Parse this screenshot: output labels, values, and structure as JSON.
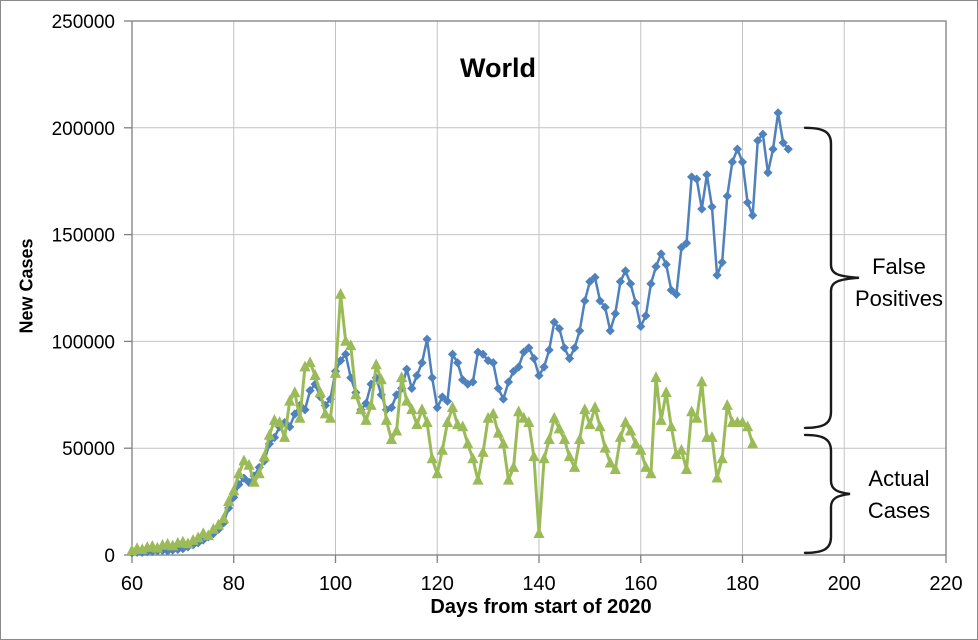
{
  "chart_data": {
    "type": "line",
    "title": "World",
    "xlabel": "Days from start of 2020",
    "ylabel": "New Cases",
    "xlim": [
      60,
      220
    ],
    "ylim": [
      0,
      250000
    ],
    "x_ticks": [
      60,
      80,
      100,
      120,
      140,
      160,
      180,
      200,
      220
    ],
    "y_ticks": [
      0,
      50000,
      100000,
      150000,
      200000,
      250000
    ],
    "grid": true,
    "legend": "none",
    "colors": {
      "blue_series": "#4f81bd",
      "green_series": "#9bbb59",
      "gridline": "#c3c3c3",
      "axis": "#808080",
      "text": "#000000",
      "brace": "#1a1a1a"
    },
    "series": [
      {
        "name": "reported-new-cases (false positives)",
        "color": "#4f81bd",
        "marker": "diamond",
        "x_start": 60,
        "x_step": 1,
        "values": [
          1000,
          1300,
          1200,
          1500,
          1700,
          1900,
          2100,
          1900,
          2300,
          2600,
          3000,
          3800,
          4700,
          5700,
          7000,
          8500,
          10000,
          12000,
          15000,
          22000,
          27000,
          33000,
          36000,
          34000,
          37000,
          41000,
          44000,
          52000,
          55000,
          60000,
          62000,
          60000,
          66000,
          70000,
          68000,
          77000,
          80000,
          74000,
          70000,
          73000,
          86000,
          91000,
          94000,
          83000,
          76000,
          68000,
          71000,
          80000,
          83000,
          75000,
          68000,
          69000,
          75000,
          78000,
          87000,
          78000,
          84000,
          90000,
          101000,
          83000,
          69000,
          74000,
          72000,
          94000,
          90000,
          82000,
          80000,
          81000,
          95000,
          94000,
          91000,
          90000,
          78000,
          73000,
          81000,
          86000,
          88000,
          95000,
          97000,
          92000,
          84000,
          88000,
          96000,
          109000,
          106000,
          97000,
          92000,
          97000,
          105000,
          119000,
          128000,
          130000,
          119000,
          116000,
          105000,
          113000,
          128000,
          133000,
          127000,
          118000,
          107000,
          112000,
          127000,
          135000,
          141000,
          136000,
          124000,
          122000,
          144000,
          146000,
          177000,
          176000,
          162000,
          178000,
          163000,
          131000,
          137000,
          168000,
          184000,
          190000,
          184000,
          165000,
          159000,
          194000,
          197000,
          179000,
          190000,
          207000,
          193000,
          190000
        ]
      },
      {
        "name": "actual-new-cases",
        "color": "#9bbb59",
        "marker": "triangle-up",
        "x_start": 60,
        "x_step": 1,
        "values": [
          2000,
          3000,
          2500,
          3500,
          4000,
          3200,
          4500,
          5000,
          4200,
          5500,
          6000,
          5200,
          6800,
          8000,
          10000,
          9000,
          12000,
          14000,
          17000,
          25000,
          30000,
          38000,
          44000,
          42000,
          34000,
          38000,
          46000,
          56000,
          63000,
          62000,
          55000,
          72000,
          76000,
          64000,
          88000,
          90000,
          84000,
          76000,
          66000,
          64000,
          85000,
          122000,
          100000,
          98000,
          75000,
          68000,
          63000,
          70000,
          89000,
          82000,
          63000,
          54000,
          58000,
          83000,
          72000,
          68000,
          61000,
          68000,
          62000,
          45000,
          38000,
          49000,
          62000,
          69000,
          61000,
          60000,
          52000,
          45000,
          35000,
          48000,
          64000,
          66000,
          57000,
          52000,
          35000,
          41000,
          67000,
          64000,
          62000,
          46000,
          10000,
          45000,
          54000,
          64000,
          59000,
          54000,
          46000,
          41000,
          54000,
          68000,
          61000,
          69000,
          60000,
          50000,
          43000,
          40000,
          55000,
          62000,
          58000,
          52000,
          49000,
          41000,
          38000,
          83000,
          63000,
          76000,
          60000,
          47000,
          49000,
          40000,
          67000,
          64000,
          81000,
          55000,
          55000,
          36000,
          45000,
          70000,
          62000,
          62000,
          62000,
          60000,
          52000
        ]
      }
    ],
    "annotations": [
      {
        "label": "False Positives",
        "line1": "False",
        "line2": "Positives",
        "shape": "right-curly-brace",
        "value_range": [
          59500,
          200000
        ]
      },
      {
        "label": "Actual Cases",
        "line1": "Actual",
        "line2": "Cases",
        "shape": "right-curly-brace",
        "value_range": [
          1000,
          56200
        ]
      }
    ]
  }
}
